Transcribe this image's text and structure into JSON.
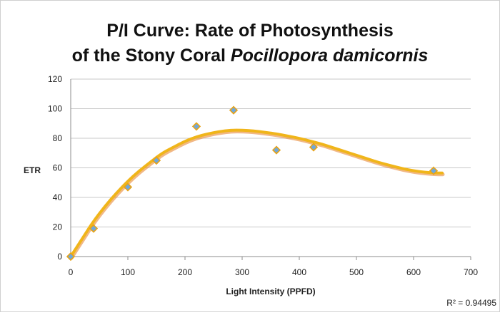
{
  "chart_data": {
    "type": "scatter",
    "title_line1": "P/I Curve: Rate of Photosynthesis",
    "title_line2_prefix": "of the Stony Coral ",
    "title_line2_italic": "Pocillopora damicornis",
    "xlabel": "Light Intensity (PPFD)",
    "ylabel": "ETR",
    "xlim": [
      0,
      700
    ],
    "ylim": [
      0,
      120
    ],
    "xticks": [
      "0",
      "100",
      "200",
      "300",
      "400",
      "500",
      "600",
      "700"
    ],
    "yticks": [
      "0",
      "20",
      "40",
      "60",
      "80",
      "100",
      "120"
    ],
    "grid": "horizontal",
    "legend": "none",
    "annotation": "R² = 0.94495",
    "trendline": "polynomial",
    "series": [
      {
        "x": [
          0,
          40,
          100,
          150,
          220,
          285,
          360,
          425,
          635
        ],
        "y": [
          0,
          19,
          47,
          65,
          88,
          99,
          72,
          74,
          58
        ]
      }
    ],
    "trend_x": [
      0,
      20,
      40,
      60,
      80,
      100,
      120,
      140,
      160,
      180,
      200,
      220,
      240,
      260,
      280,
      300,
      320,
      340,
      360,
      380,
      400,
      420,
      440,
      460,
      480,
      500,
      520,
      540,
      560,
      580,
      600,
      620,
      640,
      650
    ],
    "trend_y": [
      0,
      12,
      24,
      34,
      43,
      51,
      58,
      64,
      70,
      74,
      78,
      81,
      83,
      84.5,
      85.5,
      85.5,
      85,
      84,
      83,
      81.5,
      80,
      78,
      76,
      73.5,
      71,
      68.5,
      66,
      63.5,
      61.5,
      59.5,
      58,
      57,
      56.5,
      56.5
    ],
    "colors": {
      "marker_fill": "#6fa8dc",
      "marker_stroke": "#e8a317",
      "trendline": "#f0b51a",
      "trendline_shadow": "#e67e22",
      "grid": "#c8c8c8",
      "axis": "#8c8c8c"
    }
  }
}
